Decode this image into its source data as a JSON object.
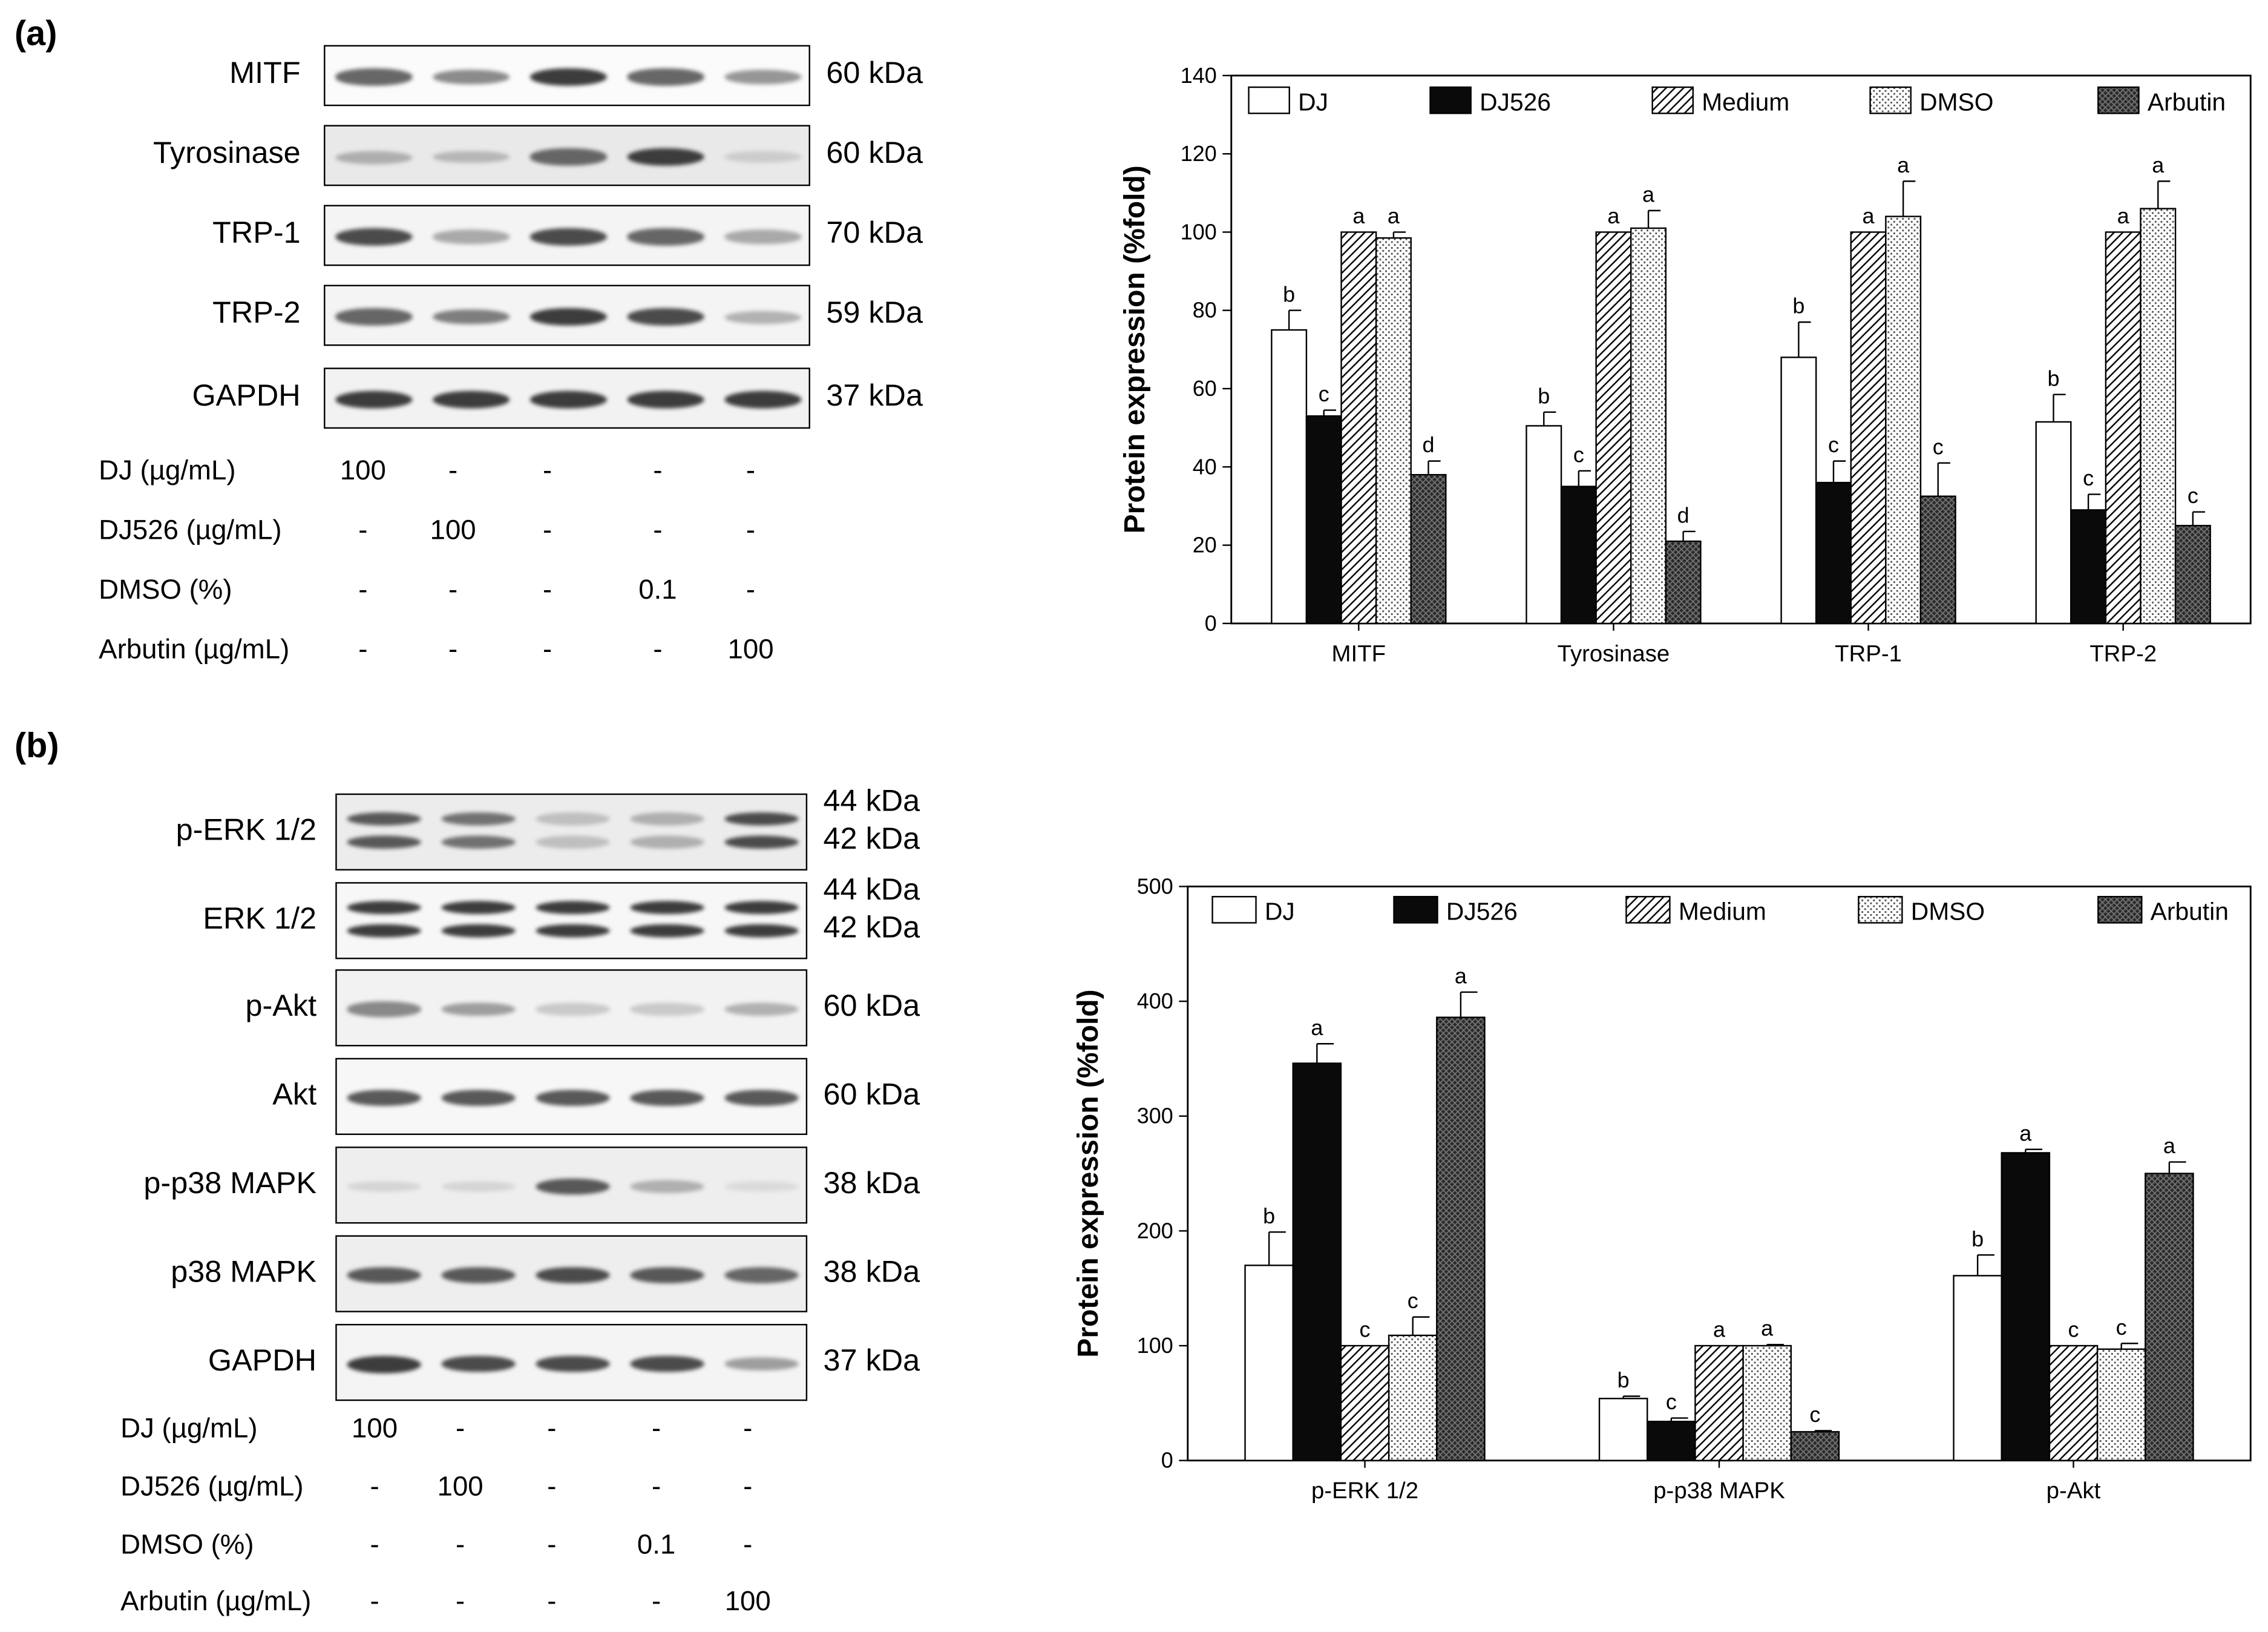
{
  "panel_a": {
    "label": "(a)",
    "blots": [
      {
        "name": "MITF",
        "kda": "60 kDa",
        "intensity": [
          0.85,
          0.7,
          1.0,
          0.85,
          0.65
        ],
        "bg": "#fbfbfb",
        "double": false
      },
      {
        "name": "Tyrosinase",
        "kda": "60 kDa",
        "intensity": [
          0.5,
          0.45,
          0.85,
          1.0,
          0.3
        ],
        "bg": "#e9e9e9",
        "double": false
      },
      {
        "name": "TRP-1",
        "kda": "70 kDa",
        "intensity": [
          0.95,
          0.55,
          0.95,
          0.85,
          0.55
        ],
        "bg": "#f4f4f4",
        "double": false
      },
      {
        "name": "TRP-2",
        "kda": "59 kDa",
        "intensity": [
          0.85,
          0.75,
          1.0,
          0.95,
          0.5
        ],
        "bg": "#f4f4f4",
        "double": false
      },
      {
        "name": "GAPDH",
        "kda": "37 kDa",
        "intensity": [
          1.0,
          1.0,
          1.0,
          1.0,
          1.0
        ],
        "bg": "#f2f2f2",
        "double": false
      }
    ],
    "treatments": [
      {
        "label": "DJ (µg/mL)",
        "values": [
          "100",
          "-",
          "-",
          "-",
          "-"
        ]
      },
      {
        "label": "DJ526 (µg/mL)",
        "values": [
          "-",
          "100",
          "-",
          "-",
          "-"
        ]
      },
      {
        "label": "DMSO (%)",
        "values": [
          "-",
          "-",
          "-",
          "0.1",
          "-"
        ]
      },
      {
        "label": "Arbutin (µg/mL)",
        "values": [
          "-",
          "-",
          "-",
          "-",
          "100"
        ]
      }
    ]
  },
  "panel_b": {
    "label": "(b)",
    "blots": [
      {
        "name": "p-ERK 1/2",
        "kda": "44 kDa",
        "kda2": "42 kDa",
        "intensity": [
          0.9,
          0.8,
          0.4,
          0.5,
          0.95
        ],
        "bg": "#ececec",
        "double": true
      },
      {
        "name": "ERK 1/2",
        "kda": "44 kDa",
        "kda2": "42 kDa",
        "intensity": [
          1.0,
          1.0,
          1.0,
          1.0,
          1.0
        ],
        "bg": "#f7f7f7",
        "double": true
      },
      {
        "name": "p-Akt",
        "kda": "60 kDa",
        "intensity": [
          0.7,
          0.6,
          0.35,
          0.35,
          0.5
        ],
        "bg": "#f2f2f2",
        "double": false
      },
      {
        "name": "Akt",
        "kda": "60 kDa",
        "intensity": [
          0.9,
          0.9,
          0.9,
          0.9,
          0.9
        ],
        "bg": "#f7f7f7",
        "double": false
      },
      {
        "name": "p-p38 MAPK",
        "kda": "38 kDa",
        "intensity": [
          0.25,
          0.25,
          0.9,
          0.5,
          0.2
        ],
        "bg": "#eeeeee",
        "double": false
      },
      {
        "name": "p38 MAPK",
        "kda": "38 kDa",
        "intensity": [
          0.9,
          0.9,
          0.95,
          0.9,
          0.85
        ],
        "bg": "#eeeeee",
        "double": false
      },
      {
        "name": "GAPDH",
        "kda": "37 kDa",
        "intensity": [
          1.0,
          0.95,
          0.95,
          0.95,
          0.6
        ],
        "bg": "#f4f4f4",
        "double": false
      }
    ],
    "treatments": [
      {
        "label": "DJ (µg/mL)",
        "values": [
          "100",
          "-",
          "-",
          "-",
          "-"
        ]
      },
      {
        "label": "DJ526 (µg/mL)",
        "values": [
          "-",
          "100",
          "-",
          "-",
          "-"
        ]
      },
      {
        "label": "DMSO (%)",
        "values": [
          "-",
          "-",
          "-",
          "0.1",
          "-"
        ]
      },
      {
        "label": "Arbutin (µg/mL)",
        "values": [
          "-",
          "-",
          "-",
          "-",
          "100"
        ]
      }
    ]
  },
  "chart_data": [
    {
      "type": "bar",
      "title": "",
      "xlabel": "",
      "ylabel": "Protein expression (%fold)",
      "ylim": [
        0,
        140
      ],
      "yticks": [
        0,
        20,
        40,
        60,
        80,
        100,
        120,
        140
      ],
      "categories": [
        "MITF",
        "Tyrosinase",
        "TRP-1",
        "TRP-2"
      ],
      "legend_position": "top, inside",
      "grid": false,
      "series": [
        {
          "name": "DJ",
          "values": [
            75,
            50.5,
            68,
            51.5
          ],
          "errors": [
            5,
            3.5,
            9,
            7
          ],
          "letters": [
            "b",
            "b",
            "b",
            "b"
          ],
          "pattern": "white"
        },
        {
          "name": "DJ526",
          "values": [
            53,
            35,
            36,
            29
          ],
          "errors": [
            1.5,
            4,
            5.5,
            4
          ],
          "letters": [
            "c",
            "c",
            "c",
            "c"
          ],
          "pattern": "black"
        },
        {
          "name": "Medium",
          "values": [
            100,
            100,
            100,
            100
          ],
          "errors": [
            0,
            0,
            0,
            0
          ],
          "letters": [
            "a",
            "a",
            "a",
            "a"
          ],
          "pattern": "hatch"
        },
        {
          "name": "DMSO",
          "values": [
            98.5,
            101,
            104,
            106
          ],
          "errors": [
            1.5,
            4.5,
            9,
            7
          ],
          "letters": [
            "a",
            "a",
            "a",
            "a"
          ],
          "pattern": "dots"
        },
        {
          "name": "Arbutin",
          "values": [
            38,
            21,
            32.5,
            25
          ],
          "errors": [
            3.5,
            2.5,
            8.5,
            3.5
          ],
          "letters": [
            "d",
            "d",
            "c",
            "c"
          ],
          "pattern": "crosshatch"
        }
      ]
    },
    {
      "type": "bar",
      "title": "",
      "xlabel": "",
      "ylabel": "Protein expression (%fold)",
      "ylim": [
        0,
        500
      ],
      "yticks": [
        0,
        100,
        200,
        300,
        400,
        500
      ],
      "categories": [
        "p-ERK 1/2",
        "p-p38 MAPK",
        "p-Akt"
      ],
      "legend_position": "top, inside",
      "grid": false,
      "series": [
        {
          "name": "DJ",
          "values": [
            170,
            54,
            161
          ],
          "errors": [
            29,
            2,
            18
          ],
          "letters": [
            "b",
            "b",
            "b"
          ],
          "pattern": "white"
        },
        {
          "name": "DJ526",
          "values": [
            346,
            34,
            268
          ],
          "errors": [
            17,
            3,
            3
          ],
          "letters": [
            "a",
            "c",
            "a"
          ],
          "pattern": "black"
        },
        {
          "name": "Medium",
          "values": [
            100,
            100,
            100
          ],
          "errors": [
            0,
            0,
            0
          ],
          "letters": [
            "c",
            "a",
            "c"
          ],
          "pattern": "hatch"
        },
        {
          "name": "DMSO",
          "values": [
            109,
            100,
            97
          ],
          "errors": [
            16,
            1,
            5
          ],
          "letters": [
            "c",
            "a",
            "c"
          ],
          "pattern": "dots"
        },
        {
          "name": "Arbutin",
          "values": [
            386,
            25,
            250
          ],
          "errors": [
            22,
            1,
            10
          ],
          "letters": [
            "a",
            "c",
            "a"
          ],
          "pattern": "crosshatch"
        }
      ]
    }
  ]
}
